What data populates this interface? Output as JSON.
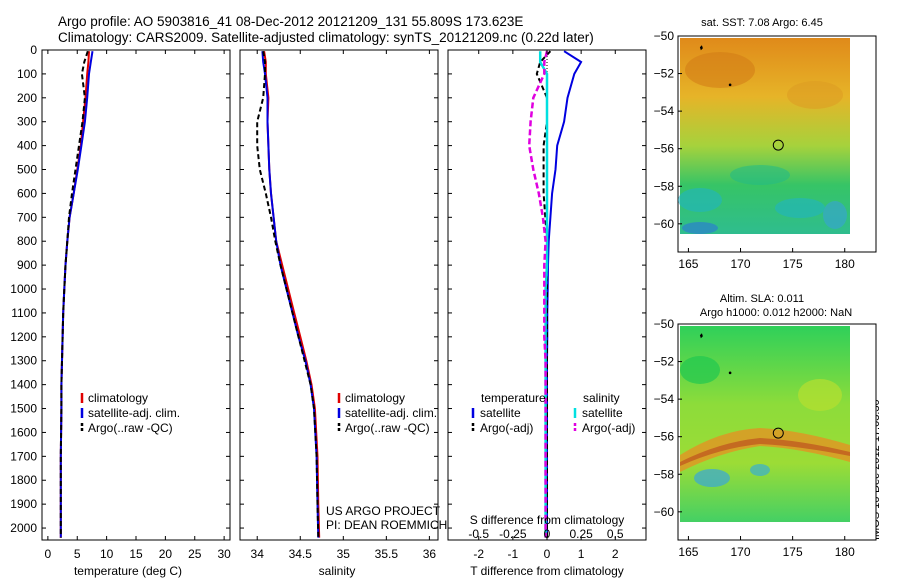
{
  "header": {
    "line1": "Argo profile: AO 5903816_41 08-Dec-2012 20121209_131 55.809S 173.623E",
    "line2": "Climatology: CARS2009. Satellite-adjusted climatology: synTS_20121209.nc (0.22d later)"
  },
  "footer_stamp": "IMOS 16-Dec-2012 17:03:30",
  "colors": {
    "climatology": "#e00000",
    "satellite": "#0000e0",
    "argo": "#000000",
    "sal_satellite": "#00e0e0",
    "sal_argo": "#e000e0"
  },
  "chart_data": [
    {
      "type": "line",
      "panel": "temperature",
      "xlabel": "temperature (deg C)",
      "ylabel": "",
      "xlim": [
        -1,
        31
      ],
      "ylim": [
        2050,
        0
      ],
      "xticks": [
        0,
        5,
        10,
        15,
        20,
        25,
        30
      ],
      "yticks": [
        0,
        100,
        200,
        300,
        400,
        500,
        600,
        700,
        800,
        900,
        1000,
        1100,
        1200,
        1300,
        1400,
        1500,
        1600,
        1700,
        1800,
        1900,
        2000
      ],
      "legend": [
        "climatology",
        "satellite-adj. clim.",
        "Argo(..raw -QC)"
      ],
      "series": [
        {
          "name": "climatology",
          "x": [
            7.0,
            6.9,
            6.7,
            6.4,
            6.0,
            5.6,
            5.0,
            4.4,
            3.7,
            3.3,
            3.0,
            2.8,
            2.6,
            2.5,
            2.4,
            2.3,
            2.3,
            2.2,
            2.2,
            2.2
          ],
          "y": [
            5,
            50,
            100,
            200,
            300,
            400,
            500,
            600,
            700,
            800,
            900,
            1000,
            1100,
            1200,
            1300,
            1400,
            1500,
            1700,
            1900,
            2040
          ]
        },
        {
          "name": "satellite-adj. clim.",
          "x": [
            7.6,
            7.3,
            7.0,
            6.7,
            6.3,
            5.7,
            5.1,
            4.4,
            3.7,
            3.3,
            3.0,
            2.8,
            2.6,
            2.5,
            2.4,
            2.3,
            2.3,
            2.2,
            2.2,
            2.2
          ],
          "y": [
            5,
            50,
            100,
            200,
            300,
            400,
            500,
            600,
            700,
            800,
            900,
            1000,
            1100,
            1200,
            1300,
            1400,
            1500,
            1700,
            1900,
            2040
          ]
        },
        {
          "name": "Argo(..raw -QC)",
          "x": [
            6.8,
            6.2,
            5.8,
            6.3,
            5.9,
            5.3,
            4.7,
            4.1,
            3.6,
            3.3,
            3.0,
            2.8,
            2.6,
            2.5,
            2.4,
            2.3,
            2.3,
            2.2,
            2.2,
            2.2
          ],
          "y": [
            5,
            50,
            100,
            200,
            300,
            400,
            500,
            600,
            700,
            800,
            900,
            1000,
            1100,
            1200,
            1300,
            1400,
            1500,
            1700,
            1900,
            2040
          ]
        }
      ]
    },
    {
      "type": "line",
      "panel": "salinity",
      "xlabel": "salinity",
      "xlim": [
        33.8,
        36.1
      ],
      "ylim": [
        2050,
        0
      ],
      "xticks": [
        34,
        34.5,
        35,
        35.5,
        36
      ],
      "legend": [
        "climatology",
        "satellite-adj. clim.",
        "Argo(..raw -QC)"
      ],
      "annotation": [
        "US ARGO PROJECT",
        "PI: DEAN ROEMMICH"
      ],
      "series": [
        {
          "name": "climatology",
          "x": [
            34.08,
            34.1,
            34.1,
            34.13,
            34.12,
            34.13,
            34.14,
            34.16,
            34.19,
            34.22,
            34.29,
            34.36,
            34.43,
            34.5,
            34.57,
            34.63,
            34.67,
            34.7,
            34.71,
            34.72
          ],
          "y": [
            5,
            50,
            100,
            200,
            300,
            400,
            500,
            600,
            700,
            800,
            900,
            1000,
            1100,
            1200,
            1300,
            1400,
            1500,
            1700,
            1900,
            2040
          ]
        },
        {
          "name": "satellite-adj. clim.",
          "x": [
            34.06,
            34.07,
            34.09,
            34.12,
            34.12,
            34.13,
            34.14,
            34.16,
            34.19,
            34.22,
            34.27,
            34.34,
            34.41,
            34.48,
            34.56,
            34.62,
            34.66,
            34.69,
            34.7,
            34.71
          ],
          "y": [
            5,
            50,
            100,
            200,
            300,
            400,
            500,
            600,
            700,
            800,
            900,
            1000,
            1100,
            1200,
            1300,
            1400,
            1500,
            1700,
            1900,
            2040
          ]
        },
        {
          "name": "Argo(..raw -QC)",
          "x": [
            34.07,
            34.09,
            34.09,
            34.07,
            34.0,
            34.0,
            34.03,
            34.1,
            34.16,
            34.21,
            34.27,
            34.34,
            34.41,
            34.48,
            34.55,
            34.62,
            34.66,
            34.69,
            34.7,
            34.71
          ],
          "y": [
            5,
            50,
            100,
            200,
            300,
            400,
            500,
            600,
            700,
            800,
            900,
            1000,
            1100,
            1200,
            1300,
            1400,
            1500,
            1700,
            1900,
            2040
          ]
        }
      ]
    },
    {
      "type": "line",
      "panel": "difference",
      "xlabel": "T difference from climatology",
      "top_xlabel": "S difference from climatology",
      "xlim": [
        -2.9,
        2.9
      ],
      "ylim": [
        2050,
        0
      ],
      "xticks": [
        -2,
        -1,
        0,
        1,
        2
      ],
      "top_xticks": [
        "-0.5",
        "-0.25",
        "0",
        "0.25",
        "0.5"
      ],
      "legend_groups": [
        {
          "title": "temperature",
          "entries": [
            "satellite",
            "Argo(-adj)"
          ]
        },
        {
          "title": "salinity",
          "entries": [
            "satellite",
            "Argo(-adj)"
          ]
        }
      ],
      "series": [
        {
          "name": "temperature satellite",
          "x": [
            0.5,
            1.0,
            0.8,
            0.6,
            0.5,
            0.3,
            0.25,
            0.15,
            0.1,
            0.05,
            0.03,
            0.02,
            0.01,
            0.01,
            0,
            0,
            0,
            0,
            0,
            0
          ],
          "y": [
            5,
            50,
            100,
            200,
            300,
            400,
            500,
            600,
            700,
            800,
            900,
            1000,
            1100,
            1200,
            1300,
            1400,
            1500,
            1700,
            1900,
            2040
          ]
        },
        {
          "name": "temperature Argo(-adj)",
          "x": [
            0.1,
            -0.2,
            -0.3,
            0.0,
            0.0,
            -0.1,
            -0.1,
            -0.1,
            -0.05,
            0,
            0,
            0,
            0,
            0,
            0,
            0,
            0,
            0,
            0,
            0
          ],
          "y": [
            5,
            50,
            100,
            200,
            300,
            400,
            500,
            600,
            700,
            800,
            900,
            1000,
            1100,
            1200,
            1300,
            1400,
            1500,
            1700,
            1900,
            2040
          ]
        },
        {
          "name": "salinity satellite",
          "x": [
            -0.05,
            -0.05,
            0.0,
            0.0,
            0.0,
            0.0,
            0.0,
            0.0,
            0.0,
            0.0,
            0.0,
            -0.01,
            -0.01,
            -0.01,
            -0.01,
            -0.01,
            -0.01,
            -0.01,
            -0.01,
            -0.01
          ],
          "y": [
            5,
            50,
            100,
            200,
            300,
            400,
            500,
            600,
            700,
            800,
            900,
            1000,
            1100,
            1200,
            1300,
            1400,
            1500,
            1700,
            1900,
            2040
          ]
        },
        {
          "name": "salinity Argo(-adj)",
          "x": [
            0.0,
            -0.02,
            -0.02,
            -0.1,
            -0.12,
            -0.13,
            -0.1,
            -0.06,
            -0.03,
            -0.01,
            -0.02,
            -0.02,
            -0.02,
            -0.02,
            -0.01,
            -0.01,
            -0.01,
            -0.01,
            -0.01,
            -0.01
          ],
          "y": [
            5,
            50,
            100,
            200,
            300,
            400,
            500,
            600,
            700,
            800,
            900,
            1000,
            1100,
            1200,
            1300,
            1400,
            1500,
            1700,
            1900,
            2040
          ]
        }
      ]
    },
    {
      "type": "heatmap",
      "panel": "sst-map",
      "title": "sat. SST: 7.08 Argo: 6.45",
      "xlim": [
        164,
        183
      ],
      "ylim": [
        -61.5,
        -50
      ],
      "xticks": [
        165,
        170,
        175,
        180
      ],
      "yticks": [
        -50,
        -52,
        -54,
        -56,
        -58,
        -60
      ],
      "argo_position": [
        173.623,
        -55.809
      ]
    },
    {
      "type": "heatmap",
      "panel": "sla-map",
      "title": "Altim. SLA: 0.011",
      "subtitle": "Argo h1000: 0.012 h2000: NaN",
      "xlim": [
        164,
        183
      ],
      "ylim": [
        -61.5,
        -50
      ],
      "xticks": [
        165,
        170,
        175,
        180
      ],
      "yticks": [
        -50,
        -52,
        -54,
        -56,
        -58,
        -60
      ],
      "argo_position": [
        173.623,
        -55.809
      ]
    }
  ]
}
